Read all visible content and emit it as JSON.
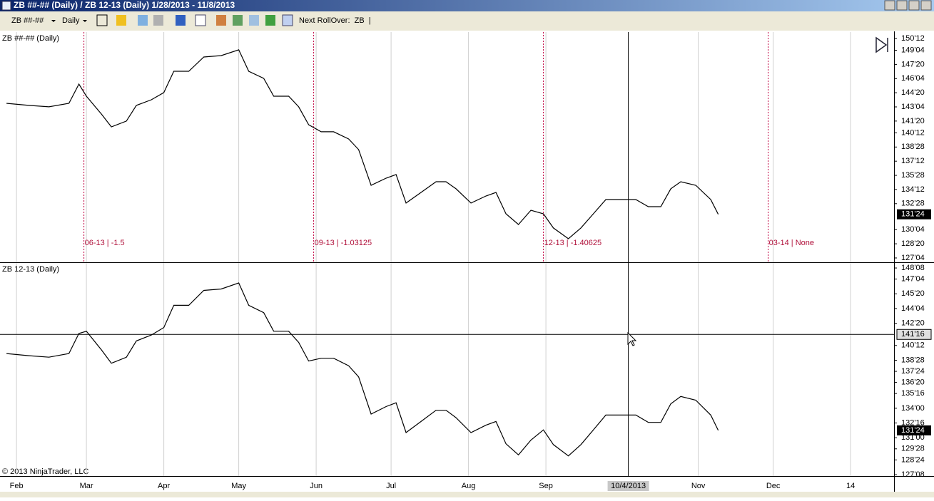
{
  "window": {
    "title": "ZB ##-## (Daily) / ZB 12-13 (Daily)  1/28/2013 - 11/8/2013"
  },
  "toolbar": {
    "instrument": "ZB ##-##",
    "interval": "Daily",
    "rollover": "Next RollOver:  ZB  |"
  },
  "footer": "© 2013 NinjaTrader, LLC",
  "x_axis": {
    "xlim": [
      -2.6,
      355.4
    ],
    "xticks": [
      {
        "value": 4,
        "label": "Feb"
      },
      {
        "value": 32,
        "label": "Mar"
      },
      {
        "value": 63,
        "label": "Apr"
      },
      {
        "value": 93,
        "label": "May"
      },
      {
        "value": 124,
        "label": "Jun"
      },
      {
        "value": 154,
        "label": "Jul"
      },
      {
        "value": 185,
        "label": "Aug"
      },
      {
        "value": 216,
        "label": "Sep"
      },
      {
        "value": 277,
        "label": "Nov"
      },
      {
        "value": 307,
        "label": "Dec"
      },
      {
        "value": 338,
        "label": "14"
      }
    ],
    "crosshair": {
      "value": 249,
      "label": "10/4/2013"
    }
  },
  "chart_data": [
    {
      "type": "line",
      "title": "ZB ##-## (Daily)",
      "color": "#000000",
      "x": [
        0,
        9,
        17,
        25,
        29,
        32,
        38,
        42,
        48,
        52,
        58,
        63,
        67,
        73,
        79,
        86,
        93,
        97,
        103,
        107,
        113,
        117,
        121,
        126,
        131,
        137,
        141,
        146,
        152,
        156,
        160,
        166,
        172,
        176,
        180,
        186,
        192,
        196,
        200,
        205,
        210,
        215,
        219,
        225,
        230,
        235,
        240,
        246,
        252,
        257,
        262,
        266,
        270,
        276,
        282,
        285
      ],
      "values": [
        143.5,
        143.28,
        143.13,
        143.5,
        145.54,
        144.26,
        142.37,
        141.01,
        141.62,
        143.28,
        143.88,
        144.64,
        146.9,
        146.9,
        148.41,
        148.56,
        149.17,
        146.9,
        146.15,
        144.26,
        144.26,
        143.13,
        141.24,
        140.49,
        140.49,
        139.73,
        138.6,
        134.82,
        135.58,
        135.96,
        132.94,
        134.07,
        135.2,
        135.2,
        134.45,
        132.94,
        133.69,
        134.07,
        131.8,
        130.67,
        132.18,
        131.8,
        130.3,
        129.16,
        130.3,
        131.8,
        133.31,
        133.31,
        133.31,
        132.56,
        132.56,
        134.45,
        135.2,
        134.82,
        133.31,
        131.75
      ],
      "ylim": [
        126.67,
        151.05
      ],
      "yticks": [
        {
          "value": 150.375,
          "label": "150'12"
        },
        {
          "value": 149.125,
          "label": "149'04"
        },
        {
          "value": 147.625,
          "label": "147'20"
        },
        {
          "value": 146.125,
          "label": "146'04"
        },
        {
          "value": 144.625,
          "label": "144'20"
        },
        {
          "value": 143.125,
          "label": "143'04"
        },
        {
          "value": 141.625,
          "label": "141'20"
        },
        {
          "value": 140.375,
          "label": "140'12"
        },
        {
          "value": 138.875,
          "label": "138'28"
        },
        {
          "value": 137.375,
          "label": "137'12"
        },
        {
          "value": 135.875,
          "label": "135'28"
        },
        {
          "value": 134.375,
          "label": "134'12"
        },
        {
          "value": 132.875,
          "label": "132'28"
        },
        {
          "value": 130.125,
          "label": "130'04"
        },
        {
          "value": 128.625,
          "label": "128'20"
        },
        {
          "value": 127.125,
          "label": "127'04"
        }
      ],
      "last_price": {
        "value": 131.75,
        "label": "131'24"
      },
      "rollovers": [
        {
          "x": 31,
          "label": "06-13 | -1.5"
        },
        {
          "x": 123,
          "label": "09-13 | -1.03125"
        },
        {
          "x": 215,
          "label": "12-13 | -1.40625"
        },
        {
          "x": 305,
          "label": "03-14 | None"
        }
      ]
    },
    {
      "type": "line",
      "title": "ZB 12-13 (Daily)",
      "color": "#000000",
      "x": [
        0,
        9,
        17,
        25,
        29,
        32,
        38,
        42,
        48,
        52,
        58,
        63,
        67,
        73,
        79,
        86,
        93,
        97,
        103,
        107,
        113,
        117,
        121,
        126,
        131,
        137,
        141,
        146,
        152,
        156,
        160,
        166,
        172,
        176,
        180,
        186,
        192,
        196,
        200,
        205,
        210,
        215,
        219,
        225,
        230,
        235,
        240,
        246,
        252,
        257,
        262,
        266,
        270,
        276,
        282,
        285
      ],
      "values": [
        139.56,
        139.34,
        139.19,
        139.56,
        141.6,
        141.82,
        139.93,
        138.57,
        139.18,
        140.84,
        141.44,
        142.2,
        144.46,
        144.46,
        145.97,
        146.12,
        146.73,
        144.46,
        143.71,
        141.82,
        141.82,
        140.69,
        138.8,
        139.08,
        139.08,
        138.32,
        137.19,
        133.41,
        134.17,
        134.55,
        131.53,
        132.66,
        133.79,
        133.79,
        133.04,
        131.53,
        132.28,
        132.66,
        130.39,
        129.26,
        130.77,
        131.8,
        130.3,
        129.16,
        130.3,
        131.8,
        133.31,
        133.31,
        133.31,
        132.56,
        132.56,
        134.45,
        135.2,
        134.82,
        133.31,
        131.75
      ],
      "ylim": [
        127.11,
        148.76
      ],
      "yticks": [
        {
          "value": 148.25,
          "label": "148'08"
        },
        {
          "value": 147.125,
          "label": "147'04"
        },
        {
          "value": 145.625,
          "label": "145'20"
        },
        {
          "value": 144.125,
          "label": "144'04"
        },
        {
          "value": 142.625,
          "label": "142'20"
        },
        {
          "value": 140.375,
          "label": "140'12"
        },
        {
          "value": 138.875,
          "label": "138'28"
        },
        {
          "value": 137.75,
          "label": "137'24"
        },
        {
          "value": 136.625,
          "label": "136'20"
        },
        {
          "value": 135.5,
          "label": "135'16"
        },
        {
          "value": 134,
          "label": "134'00"
        },
        {
          "value": 132.5,
          "label": "132'16"
        },
        {
          "value": 131,
          "label": "131'00"
        },
        {
          "value": 129.875,
          "label": "129'28"
        },
        {
          "value": 128.75,
          "label": "128'24"
        },
        {
          "value": 127.25,
          "label": "127'08"
        }
      ],
      "last_price": {
        "value": 131.75,
        "label": "131'24"
      },
      "crosshair": {
        "value": 141.5,
        "label": "141'16"
      }
    }
  ]
}
